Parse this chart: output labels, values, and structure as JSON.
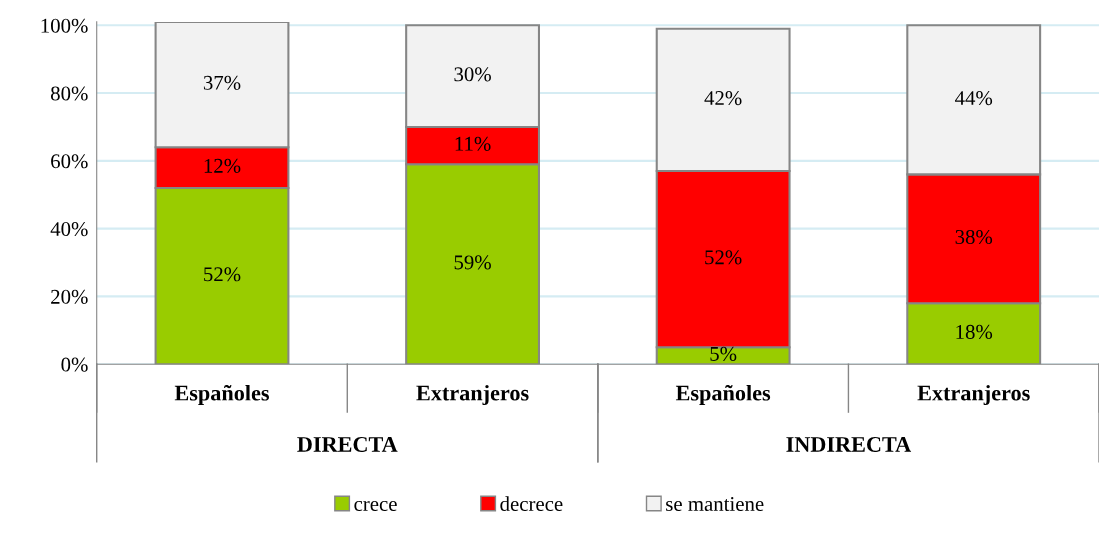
{
  "chart_data": {
    "type": "bar",
    "stacked": true,
    "categories": [
      "Españoles",
      "Extranjeros",
      "Españoles",
      "Extranjeros"
    ],
    "series": [
      {
        "name": "crece",
        "color": "#99cc00",
        "values": [
          52,
          59,
          5,
          18
        ],
        "value_labels": [
          "52%",
          "59%",
          "5%",
          "18%"
        ]
      },
      {
        "name": "decrece",
        "color": "#ff0000",
        "values": [
          12,
          11,
          52,
          38
        ],
        "value_labels": [
          "12%",
          "11%",
          "52%",
          "38%"
        ]
      },
      {
        "name": "se mantiene",
        "color": "#f2f2f2",
        "values": [
          37,
          30,
          42,
          44
        ],
        "value_labels": [
          "37%",
          "30%",
          "42%",
          "44%"
        ]
      }
    ],
    "annotations": [
      "DIRECTA",
      "INDIRECTA"
    ],
    "ylim": [
      0,
      101
    ],
    "yticks": [
      {
        "value": 0,
        "label": "0%"
      },
      {
        "value": 20,
        "label": "20%"
      },
      {
        "value": 40,
        "label": "40%"
      },
      {
        "value": 60,
        "label": "60%"
      },
      {
        "value": 80,
        "label": "80%"
      },
      {
        "value": 100,
        "label": "100%"
      }
    ],
    "grid": "y",
    "legend": "bottom"
  }
}
